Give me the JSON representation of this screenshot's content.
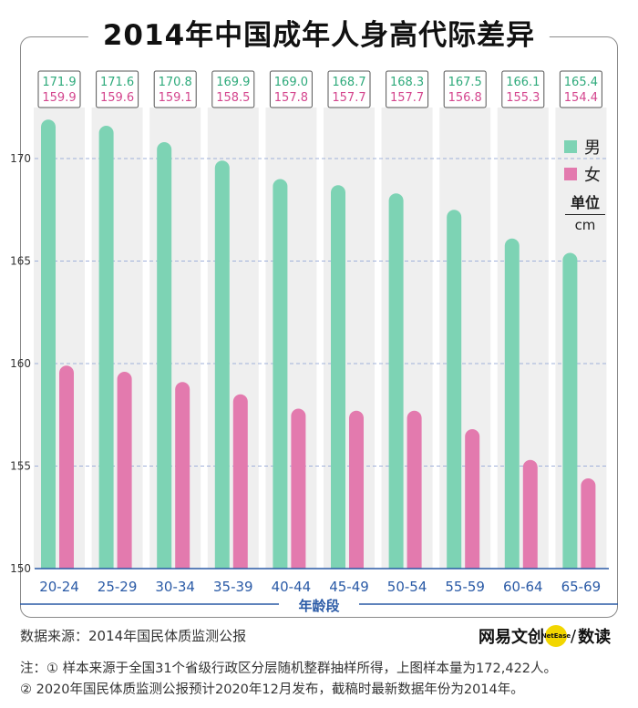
{
  "title": "2014年中国成年人身高代际差异",
  "colors": {
    "male": "#7dd3b4",
    "female": "#e37aae",
    "axis": "#2a5aa6",
    "band": "#efefef",
    "grid": "#9fb0da"
  },
  "legend": {
    "male": "男",
    "female": "女"
  },
  "unit": {
    "name": "单位",
    "value": "cm"
  },
  "chart_data": {
    "type": "bar",
    "title": "2014年中国成年人身高代际差异",
    "xlabel": "年龄段",
    "ylabel": "",
    "unit": "cm",
    "ylim": [
      150,
      173
    ],
    "yticks": [
      150,
      155,
      160,
      165,
      170
    ],
    "grid": true,
    "legend_position": "right",
    "categories": [
      "20-24",
      "25-29",
      "30-34",
      "35-39",
      "40-44",
      "45-49",
      "50-54",
      "55-59",
      "60-64",
      "65-69"
    ],
    "series": [
      {
        "name": "男",
        "values": [
          171.9,
          171.6,
          170.8,
          169.9,
          169.0,
          168.7,
          168.3,
          167.5,
          166.1,
          165.4
        ]
      },
      {
        "name": "女",
        "values": [
          159.9,
          159.6,
          159.1,
          158.5,
          157.8,
          157.7,
          157.7,
          156.8,
          155.3,
          154.4
        ]
      }
    ]
  },
  "footer": {
    "source": "数据来源：2014年国民体质监测公报",
    "brand_name": "网易文创",
    "brand_badge": "NetEase",
    "brand_slash": "/",
    "brand_sub": "数读",
    "note1": "注：① 样本来源于全国31个省级行政区分层随机整群抽样所得，上图样本量为172,422人。",
    "note2": "② 2020年国民体质监测公报预计2020年12月发布，截稿时最新数据年份为2014年。"
  }
}
